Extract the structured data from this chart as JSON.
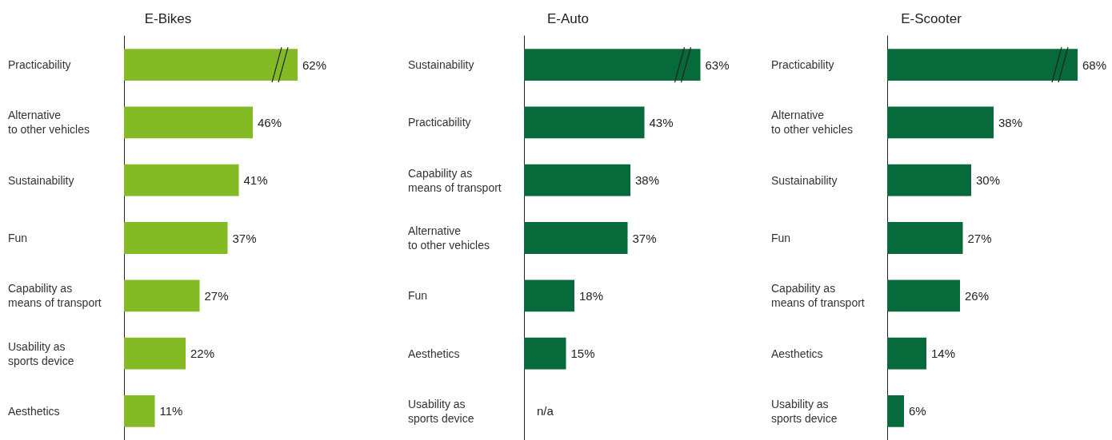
{
  "chart_data": [
    {
      "type": "bar",
      "orientation": "horizontal",
      "title": "E-Bikes",
      "categories": [
        "Practicability",
        "Alternative\nto other vehicles",
        "Sustainability",
        "Fun",
        "Capability as\nmeans of transport",
        "Usability as\nsports device",
        "Aesthetics"
      ],
      "values": [
        62,
        46,
        41,
        37,
        27,
        22,
        11
      ],
      "value_labels": [
        "62%",
        "46%",
        "41%",
        "37%",
        "27%",
        "22%",
        "11%"
      ],
      "color": "#84bb25"
    },
    {
      "type": "bar",
      "orientation": "horizontal",
      "title": "E-Auto",
      "categories": [
        "Sustainability",
        "Practicability",
        "Capability as\nmeans of transport",
        "Alternative\nto other vehicles",
        "Fun",
        "Aesthetics",
        "Usability as\nsports device"
      ],
      "values": [
        63,
        43,
        38,
        37,
        18,
        15,
        null
      ],
      "value_labels": [
        "63%",
        "43%",
        "38%",
        "37%",
        "18%",
        "15%",
        "n/a"
      ],
      "color": "#076a3a"
    },
    {
      "type": "bar",
      "orientation": "horizontal",
      "title": "E-Scooter",
      "categories": [
        "Practicability",
        "Alternative\nto other vehicles",
        "Sustainability",
        "Fun",
        "Capability as\nmeans of transport",
        "Aesthetics",
        "Usability as\nsports device"
      ],
      "values": [
        68,
        38,
        30,
        27,
        26,
        14,
        6
      ],
      "value_labels": [
        "68%",
        "38%",
        "30%",
        "27%",
        "26%",
        "14%",
        "6%"
      ],
      "color": "#076a3a"
    }
  ]
}
